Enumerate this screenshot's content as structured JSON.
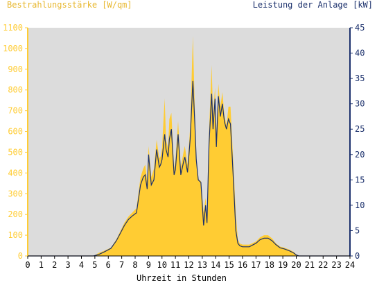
{
  "chart_data": {
    "type": "area",
    "title_left": "Bestrahlungsstärke [W/qm]",
    "title_right": "Leistung der Anlage [kW]",
    "xlabel": "Uhrzeit in Stunden",
    "x_ticks": [
      "0",
      "1",
      "2",
      "3",
      "4",
      "5",
      "6",
      "7",
      "8",
      "9",
      "10",
      "11",
      "12",
      "13",
      "14",
      "15",
      "16",
      "17",
      "18",
      "19",
      "20",
      "21",
      "22",
      "23",
      "24"
    ],
    "y_left_ticks": [
      "0",
      "100",
      "200",
      "300",
      "400",
      "500",
      "600",
      "700",
      "800",
      "900",
      "1000",
      "1100"
    ],
    "y_right_ticks": [
      "0",
      "5",
      "10",
      "15",
      "20",
      "25",
      "30",
      "35",
      "40",
      "45"
    ],
    "xlim": [
      0,
      24
    ],
    "ylim_left": [
      0,
      1100
    ],
    "ylim_right": [
      0,
      45
    ],
    "grid": false,
    "colors": {
      "plot_bg": "#dcdcdc",
      "irradiance_fill": "#ffcc33",
      "power_line": "#1a2f6b",
      "left_axis": "#ffcc33",
      "right_axis": "#1a2f6b",
      "title_left": "#e8b830",
      "title_right": "#1a2f6b"
    },
    "series": [
      {
        "key": "irradiance",
        "axis": "left",
        "x": [
          0,
          4.9,
          5.3,
          5.7,
          6.2,
          6.6,
          6.9,
          7.2,
          7.5,
          7.8,
          8.1,
          8.4,
          8.6,
          8.75,
          8.9,
          9.0,
          9.2,
          9.4,
          9.6,
          9.8,
          9.9,
          10.0,
          10.2,
          10.3,
          10.45,
          10.55,
          10.7,
          10.9,
          11.0,
          11.2,
          11.4,
          11.6,
          11.7,
          11.9,
          12.1,
          12.3,
          12.45,
          12.55,
          12.7,
          12.9,
          13.1,
          13.25,
          13.35,
          13.5,
          13.7,
          13.8,
          13.95,
          14.05,
          14.2,
          14.35,
          14.5,
          14.65,
          14.8,
          14.95,
          15.1,
          15.3,
          15.5,
          15.65,
          15.8,
          16.0,
          16.5,
          17.0,
          17.3,
          17.6,
          17.9,
          18.2,
          18.5,
          18.8,
          19.1,
          19.5,
          19.8,
          20.0,
          20.2,
          24
        ],
        "y": [
          0,
          0,
          15,
          25,
          40,
          80,
          120,
          160,
          190,
          210,
          230,
          380,
          420,
          440,
          360,
          530,
          380,
          420,
          560,
          470,
          480,
          520,
          760,
          560,
          520,
          660,
          690,
          420,
          460,
          650,
          430,
          500,
          530,
          440,
          620,
          1060,
          700,
          480,
          370,
          360,
          210,
          280,
          180,
          600,
          920,
          680,
          810,
          580,
          830,
          720,
          790,
          680,
          630,
          720,
          720,
          470,
          200,
          80,
          60,
          55,
          55,
          70,
          90,
          100,
          100,
          85,
          60,
          45,
          40,
          30,
          20,
          8,
          0,
          0
        ]
      },
      {
        "key": "power",
        "axis": "right",
        "x": [
          0,
          4.9,
          5.3,
          5.7,
          6.2,
          6.6,
          6.9,
          7.2,
          7.5,
          7.8,
          8.1,
          8.4,
          8.6,
          8.75,
          8.9,
          9.0,
          9.2,
          9.4,
          9.6,
          9.8,
          9.9,
          10.0,
          10.2,
          10.3,
          10.45,
          10.55,
          10.7,
          10.9,
          11.0,
          11.2,
          11.4,
          11.6,
          11.7,
          11.9,
          12.1,
          12.3,
          12.45,
          12.55,
          12.7,
          12.9,
          13.1,
          13.25,
          13.35,
          13.5,
          13.7,
          13.8,
          13.95,
          14.05,
          14.2,
          14.35,
          14.5,
          14.65,
          14.8,
          14.95,
          15.1,
          15.3,
          15.5,
          15.65,
          15.8,
          16.0,
          16.5,
          17.0,
          17.3,
          17.6,
          17.9,
          18.2,
          18.5,
          18.8,
          19.1,
          19.5,
          19.8,
          20.0,
          20.2,
          24
        ],
        "y": [
          0,
          0,
          0.3,
          0.8,
          1.5,
          3.0,
          4.5,
          6.0,
          7.2,
          7.9,
          8.5,
          14.0,
          15.5,
          16.0,
          13.2,
          20.0,
          14.0,
          15.0,
          21.0,
          17.5,
          18.0,
          19.0,
          24.0,
          21.0,
          19.5,
          23.0,
          25.0,
          16.0,
          17.0,
          24.0,
          16.0,
          18.5,
          19.5,
          16.5,
          23.0,
          34.5,
          26.0,
          19.0,
          15.0,
          14.5,
          6.0,
          10.0,
          6.5,
          22.0,
          32.0,
          25.0,
          31.0,
          21.5,
          31.5,
          27.5,
          30.0,
          26.5,
          25.0,
          27.0,
          26.0,
          16.0,
          5.0,
          2.5,
          2.0,
          1.8,
          1.8,
          2.5,
          3.2,
          3.5,
          3.5,
          3.0,
          2.2,
          1.6,
          1.4,
          1.0,
          0.6,
          0.2,
          0,
          0
        ]
      }
    ]
  }
}
